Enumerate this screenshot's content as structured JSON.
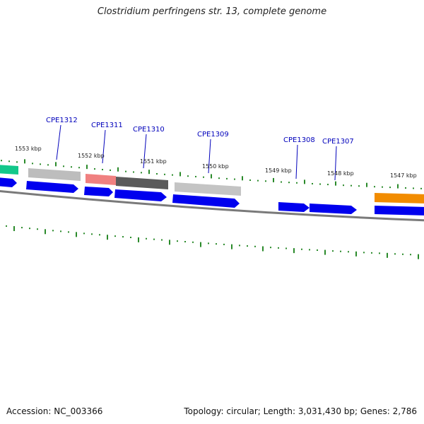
{
  "title": "Clostridium perfringens str. 13, complete genome",
  "footer": {
    "accession": "Accession: NC_003366",
    "summary": "Topology: circular; Length: 3,031,430 bp; Genes: 2,786"
  },
  "colors": {
    "cds_arrow": "#0000ee",
    "label_text": "#0000bb",
    "tick": "#2a8a2a",
    "backbone": "#7a7a7a"
  },
  "genes": [
    {
      "id": "CPE1312"
    },
    {
      "id": "CPE1311"
    },
    {
      "id": "CPE1310"
    },
    {
      "id": "CPE1309"
    },
    {
      "id": "CPE1308"
    },
    {
      "id": "CPE1307"
    }
  ],
  "kbp_ticks": [
    "1553 kbp",
    "1552 kbp",
    "1551 kbp",
    "1550 kbp",
    "1549 kbp",
    "1548 kbp",
    "1547 kbp"
  ]
}
